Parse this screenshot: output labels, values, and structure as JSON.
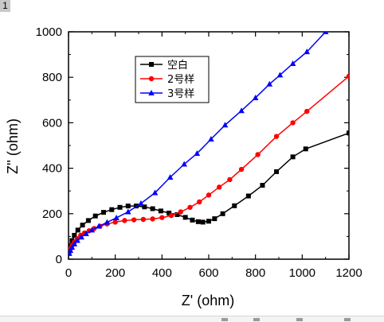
{
  "corner_label": "1",
  "colors": {
    "blank": "#000000",
    "sample2": "#ff0000",
    "sample3": "#0000ff"
  },
  "chart_data": {
    "type": "scatter",
    "xlabel": "Z' (ohm)",
    "ylabel": "Z'' (ohm)",
    "xlim": [
      0,
      1200
    ],
    "ylim": [
      0,
      1000
    ],
    "xticks": [
      0,
      200,
      400,
      600,
      800,
      1000,
      1200
    ],
    "yticks": [
      0,
      200,
      400,
      600,
      800,
      1000
    ],
    "grid": false,
    "legend_position": "top-center",
    "series": [
      {
        "name": "空白",
        "color": "#000000",
        "marker": "square",
        "points": [
          [
            4,
            40
          ],
          [
            8,
            60
          ],
          [
            15,
            82
          ],
          [
            25,
            105
          ],
          [
            40,
            128
          ],
          [
            60,
            150
          ],
          [
            85,
            170
          ],
          [
            115,
            190
          ],
          [
            150,
            206
          ],
          [
            185,
            218
          ],
          [
            220,
            228
          ],
          [
            255,
            234
          ],
          [
            290,
            234
          ],
          [
            325,
            230
          ],
          [
            360,
            222
          ],
          [
            395,
            212
          ],
          [
            430,
            203
          ],
          [
            465,
            196
          ],
          [
            500,
            184
          ],
          [
            530,
            172
          ],
          [
            555,
            165
          ],
          [
            575,
            163
          ],
          [
            600,
            167
          ],
          [
            625,
            178
          ],
          [
            660,
            200
          ],
          [
            710,
            235
          ],
          [
            770,
            278
          ],
          [
            830,
            325
          ],
          [
            890,
            385
          ],
          [
            960,
            450
          ],
          [
            1015,
            485
          ],
          [
            1200,
            555
          ]
        ]
      },
      {
        "name": "2号样",
        "color": "#ff0000",
        "marker": "circle",
        "points": [
          [
            3,
            30
          ],
          [
            8,
            45
          ],
          [
            15,
            60
          ],
          [
            25,
            75
          ],
          [
            38,
            90
          ],
          [
            52,
            105
          ],
          [
            68,
            115
          ],
          [
            88,
            125
          ],
          [
            110,
            135
          ],
          [
            135,
            145
          ],
          [
            165,
            155
          ],
          [
            200,
            163
          ],
          [
            240,
            170
          ],
          [
            280,
            173
          ],
          [
            320,
            175
          ],
          [
            360,
            177
          ],
          [
            400,
            183
          ],
          [
            440,
            192
          ],
          [
            480,
            208
          ],
          [
            520,
            228
          ],
          [
            560,
            252
          ],
          [
            600,
            282
          ],
          [
            645,
            317
          ],
          [
            690,
            350
          ],
          [
            740,
            395
          ],
          [
            810,
            460
          ],
          [
            890,
            540
          ],
          [
            960,
            600
          ],
          [
            1020,
            650
          ],
          [
            1200,
            805
          ]
        ]
      },
      {
        "name": "3号样",
        "color": "#0000ff",
        "marker": "triangle",
        "points": [
          [
            3,
            25
          ],
          [
            8,
            38
          ],
          [
            15,
            52
          ],
          [
            25,
            67
          ],
          [
            38,
            82
          ],
          [
            55,
            97
          ],
          [
            75,
            112
          ],
          [
            100,
            128
          ],
          [
            130,
            145
          ],
          [
            165,
            162
          ],
          [
            205,
            182
          ],
          [
            255,
            208
          ],
          [
            310,
            245
          ],
          [
            370,
            292
          ],
          [
            435,
            360
          ],
          [
            495,
            418
          ],
          [
            550,
            465
          ],
          [
            610,
            528
          ],
          [
            670,
            590
          ],
          [
            740,
            653
          ],
          [
            800,
            710
          ],
          [
            860,
            770
          ],
          [
            905,
            810
          ],
          [
            960,
            860
          ],
          [
            1020,
            912
          ],
          [
            1100,
            1000
          ]
        ]
      }
    ]
  }
}
